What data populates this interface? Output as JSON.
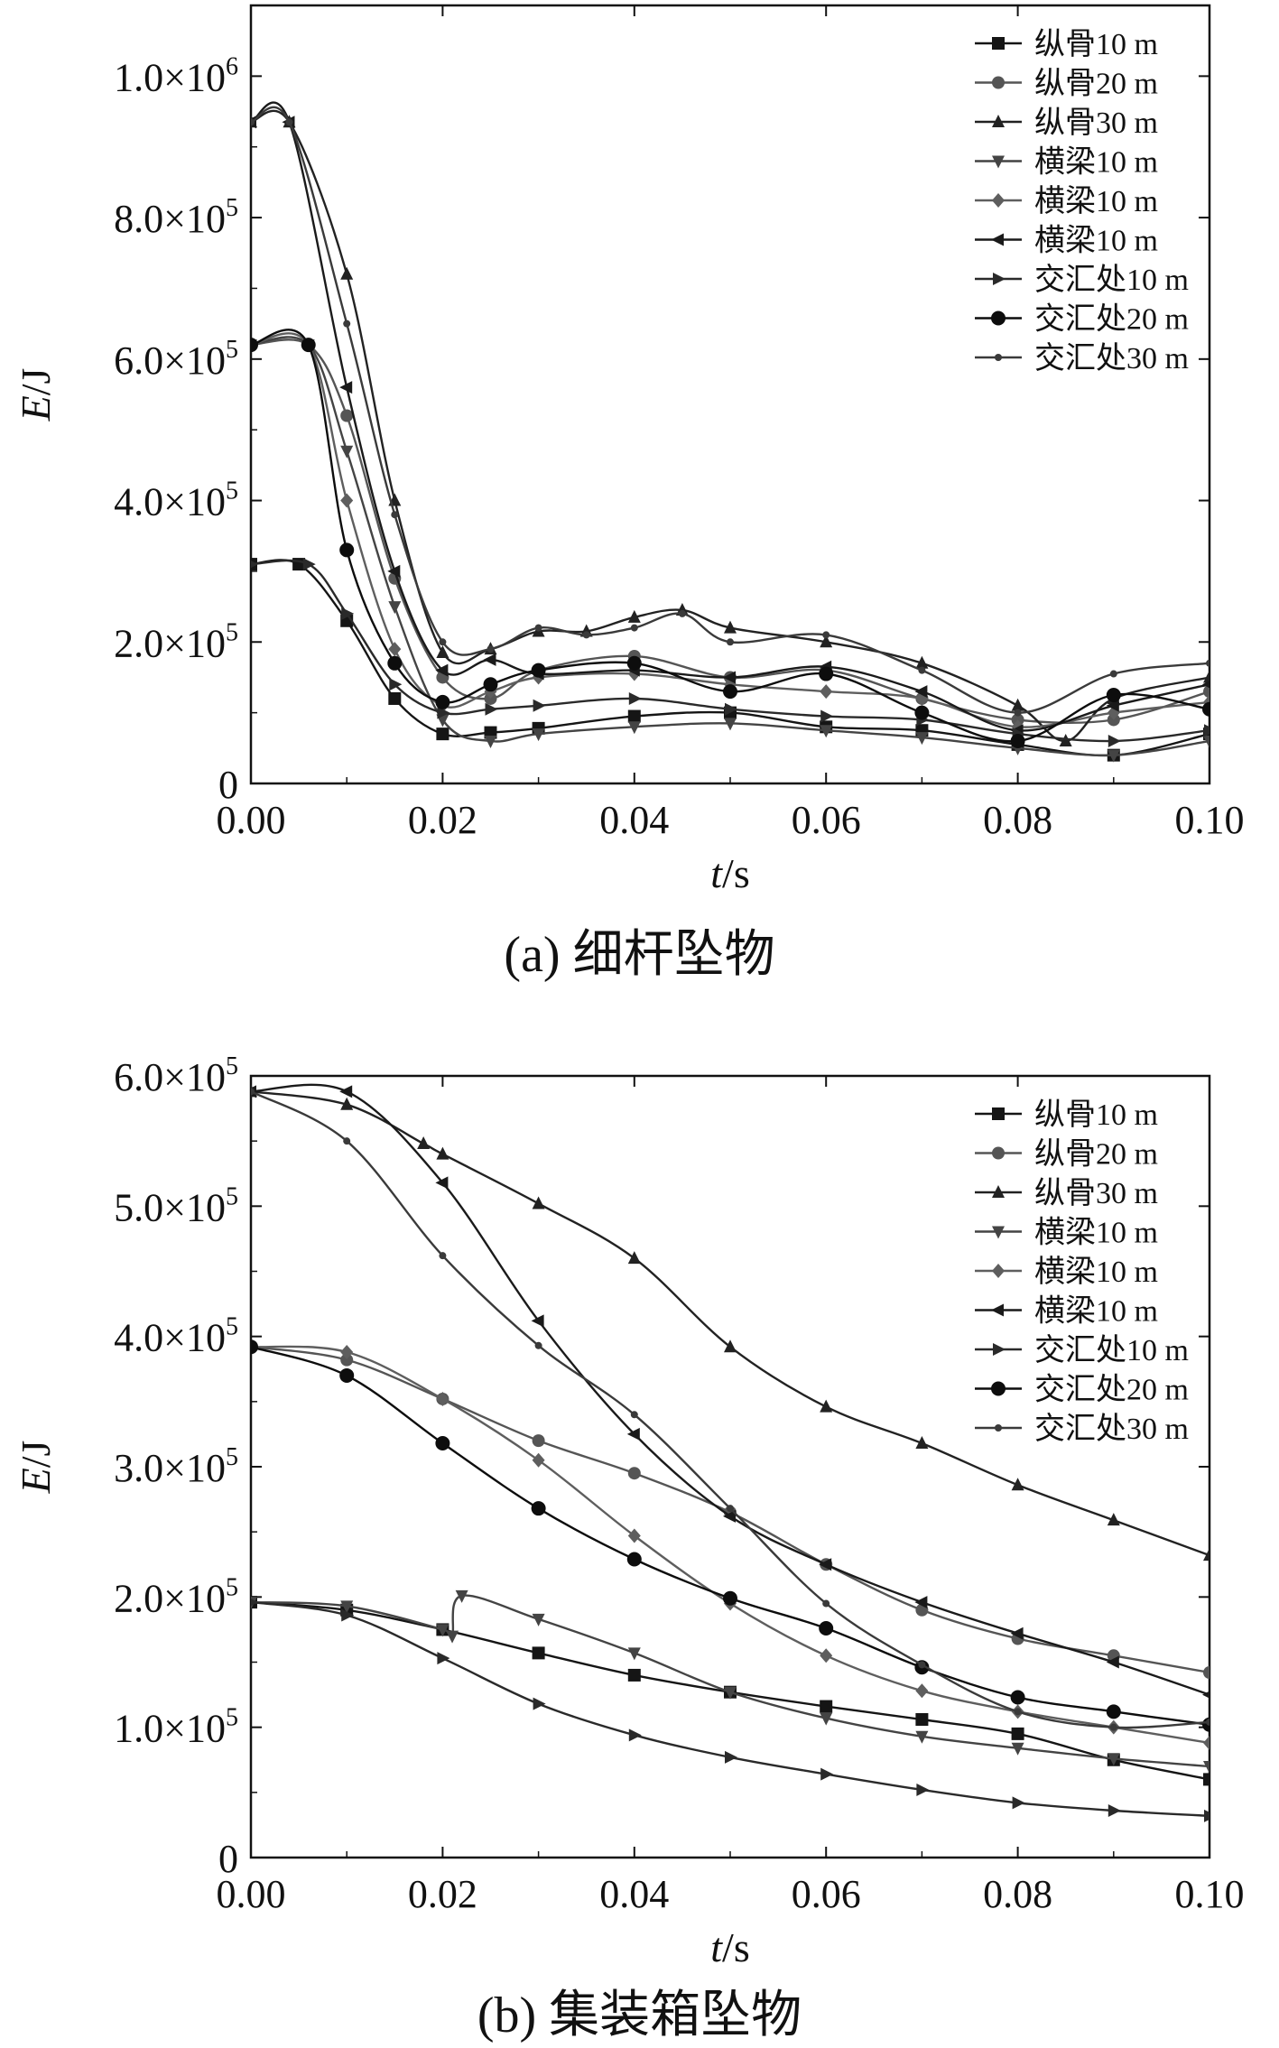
{
  "chart_data": [
    {
      "type": "line",
      "caption": "(a) 细杆坠物",
      "xlabel_italic": "t",
      "xlabel_unit": "/s",
      "ylabel_italic": "E",
      "ylabel_unit": "/J",
      "xlim": [
        0,
        0.1
      ],
      "ylim": [
        0,
        1100000
      ],
      "xticks": [
        0,
        0.02,
        0.04,
        0.06,
        0.08,
        0.1
      ],
      "xtick_labels": [
        "0.00",
        "0.02",
        "0.04",
        "0.06",
        "0.08",
        "0.10"
      ],
      "yticks": [
        0,
        200000,
        400000,
        600000,
        800000,
        1000000
      ],
      "ytick_labels": [
        {
          "base": "0",
          "exp": ""
        },
        {
          "base": "2.0×10",
          "exp": "5"
        },
        {
          "base": "4.0×10",
          "exp": "5"
        },
        {
          "base": "6.0×10",
          "exp": "5"
        },
        {
          "base": "8.0×10",
          "exp": "5"
        },
        {
          "base": "1.0×10",
          "exp": "6"
        }
      ],
      "legend_position": "top-right",
      "grid": false,
      "series": [
        {
          "name": "纵骨10 m",
          "marker": "square",
          "color": "#151515",
          "x": [
            0,
            0.005,
            0.01,
            0.015,
            0.02,
            0.025,
            0.03,
            0.04,
            0.05,
            0.06,
            0.07,
            0.08,
            0.09,
            0.1
          ],
          "y": [
            310000,
            310000,
            230000,
            120000,
            70000,
            72000,
            78000,
            95000,
            100000,
            80000,
            75000,
            55000,
            40000,
            70000
          ]
        },
        {
          "name": "纵骨20 m",
          "marker": "circle",
          "color": "#555555",
          "x": [
            0,
            0.006,
            0.01,
            0.015,
            0.02,
            0.025,
            0.03,
            0.04,
            0.05,
            0.06,
            0.07,
            0.08,
            0.09,
            0.1
          ],
          "y": [
            620000,
            620000,
            520000,
            290000,
            150000,
            120000,
            160000,
            180000,
            150000,
            160000,
            120000,
            90000,
            90000,
            130000
          ]
        },
        {
          "name": "纵骨30 m",
          "marker": "triangle-up",
          "color": "#222222",
          "x": [
            0,
            0.004,
            0.01,
            0.015,
            0.02,
            0.025,
            0.03,
            0.035,
            0.04,
            0.045,
            0.05,
            0.06,
            0.07,
            0.08,
            0.085,
            0.09,
            0.1
          ],
          "y": [
            935000,
            935000,
            720000,
            400000,
            185000,
            190000,
            215000,
            215000,
            235000,
            245000,
            220000,
            200000,
            170000,
            110000,
            60000,
            120000,
            150000
          ]
        },
        {
          "name": "横梁10 m",
          "marker": "triangle-down",
          "color": "#444444",
          "x": [
            0,
            0.006,
            0.01,
            0.015,
            0.02,
            0.025,
            0.03,
            0.04,
            0.05,
            0.06,
            0.07,
            0.08,
            0.09,
            0.1
          ],
          "y": [
            620000,
            620000,
            470000,
            250000,
            90000,
            60000,
            70000,
            80000,
            85000,
            75000,
            65000,
            50000,
            40000,
            60000
          ]
        },
        {
          "name": "横梁10 m",
          "marker": "diamond",
          "color": "#5e5e5e",
          "x": [
            0,
            0.006,
            0.01,
            0.015,
            0.02,
            0.025,
            0.03,
            0.04,
            0.05,
            0.06,
            0.07,
            0.08,
            0.09,
            0.1
          ],
          "y": [
            620000,
            620000,
            400000,
            190000,
            110000,
            130000,
            150000,
            155000,
            140000,
            130000,
            120000,
            80000,
            100000,
            115000
          ]
        },
        {
          "name": "横梁10 m",
          "marker": "triangle-left",
          "color": "#1a1a1a",
          "x": [
            0,
            0.004,
            0.01,
            0.015,
            0.02,
            0.025,
            0.03,
            0.04,
            0.05,
            0.06,
            0.07,
            0.08,
            0.09,
            0.1
          ],
          "y": [
            935000,
            935000,
            560000,
            300000,
            160000,
            175000,
            155000,
            160000,
            150000,
            165000,
            130000,
            75000,
            110000,
            140000
          ]
        },
        {
          "name": "交汇处10 m",
          "marker": "triangle-right",
          "color": "#2a2a2a",
          "x": [
            0,
            0.006,
            0.01,
            0.015,
            0.02,
            0.025,
            0.03,
            0.04,
            0.05,
            0.06,
            0.07,
            0.08,
            0.09,
            0.1
          ],
          "y": [
            310000,
            310000,
            240000,
            140000,
            100000,
            105000,
            110000,
            120000,
            105000,
            95000,
            90000,
            70000,
            60000,
            75000
          ]
        },
        {
          "name": "交汇处20 m",
          "marker": "filled-circle",
          "color": "#0d0d0d",
          "x": [
            0,
            0.006,
            0.01,
            0.015,
            0.02,
            0.025,
            0.03,
            0.04,
            0.05,
            0.06,
            0.07,
            0.08,
            0.09,
            0.1
          ],
          "y": [
            620000,
            620000,
            330000,
            170000,
            115000,
            140000,
            160000,
            170000,
            130000,
            155000,
            100000,
            60000,
            125000,
            105000
          ]
        },
        {
          "name": "交汇处30 m",
          "marker": "small-dot",
          "color": "#3a3a3a",
          "x": [
            0,
            0.004,
            0.01,
            0.015,
            0.02,
            0.025,
            0.03,
            0.035,
            0.04,
            0.045,
            0.05,
            0.06,
            0.07,
            0.08,
            0.09,
            0.1
          ],
          "y": [
            935000,
            935000,
            650000,
            380000,
            200000,
            190000,
            220000,
            210000,
            220000,
            240000,
            200000,
            210000,
            160000,
            100000,
            155000,
            170000
          ]
        }
      ]
    },
    {
      "type": "line",
      "caption": "(b) 集装箱坠物",
      "xlabel_italic": "t",
      "xlabel_unit": "/s",
      "ylabel_italic": "E",
      "ylabel_unit": "/J",
      "xlim": [
        0,
        0.1
      ],
      "ylim": [
        0,
        600000
      ],
      "xticks": [
        0,
        0.02,
        0.04,
        0.06,
        0.08,
        0.1
      ],
      "xtick_labels": [
        "0.00",
        "0.02",
        "0.04",
        "0.06",
        "0.08",
        "0.10"
      ],
      "yticks": [
        0,
        100000,
        200000,
        300000,
        400000,
        500000,
        600000
      ],
      "ytick_labels": [
        {
          "base": "0",
          "exp": ""
        },
        {
          "base": "1.0×10",
          "exp": "5"
        },
        {
          "base": "2.0×10",
          "exp": "5"
        },
        {
          "base": "3.0×10",
          "exp": "5"
        },
        {
          "base": "4.0×10",
          "exp": "5"
        },
        {
          "base": "5.0×10",
          "exp": "5"
        },
        {
          "base": "6.0×10",
          "exp": "5"
        }
      ],
      "legend_position": "top-right",
      "grid": false,
      "series": [
        {
          "name": "纵骨10 m",
          "marker": "square",
          "color": "#151515",
          "x": [
            0,
            0.01,
            0.02,
            0.03,
            0.04,
            0.05,
            0.06,
            0.07,
            0.08,
            0.09,
            0.1
          ],
          "y": [
            196000,
            190000,
            175000,
            157000,
            140000,
            127000,
            116000,
            106000,
            95000,
            75000,
            60000
          ]
        },
        {
          "name": "纵骨20 m",
          "marker": "circle",
          "color": "#555555",
          "x": [
            0,
            0.01,
            0.02,
            0.03,
            0.04,
            0.05,
            0.06,
            0.07,
            0.08,
            0.09,
            0.1
          ],
          "y": [
            392000,
            382000,
            352000,
            320000,
            295000,
            265000,
            225000,
            190000,
            168000,
            155000,
            142000
          ]
        },
        {
          "name": "纵骨30 m",
          "marker": "triangle-up",
          "color": "#222222",
          "x": [
            0,
            0.01,
            0.018,
            0.02,
            0.03,
            0.04,
            0.05,
            0.06,
            0.07,
            0.08,
            0.09,
            0.1
          ],
          "y": [
            588000,
            578000,
            548000,
            540000,
            502000,
            460000,
            392000,
            346000,
            318000,
            286000,
            259000,
            232000
          ]
        },
        {
          "name": "横梁10 m",
          "marker": "triangle-down",
          "color": "#444444",
          "x": [
            0,
            0.01,
            0.02,
            0.021,
            0.022,
            0.03,
            0.04,
            0.05,
            0.06,
            0.07,
            0.08,
            0.09,
            0.1
          ],
          "y": [
            196000,
            193000,
            175000,
            170000,
            201000,
            183000,
            157000,
            127000,
            107000,
            93000,
            84000,
            76000,
            70000
          ]
        },
        {
          "name": "横梁10 m",
          "marker": "diamond",
          "color": "#5e5e5e",
          "x": [
            0,
            0.01,
            0.02,
            0.03,
            0.04,
            0.05,
            0.06,
            0.07,
            0.08,
            0.09,
            0.1
          ],
          "y": [
            392000,
            388000,
            352000,
            305000,
            247000,
            195000,
            155000,
            128000,
            112000,
            100000,
            88000
          ]
        },
        {
          "name": "横梁10 m",
          "marker": "triangle-left",
          "color": "#1a1a1a",
          "x": [
            0,
            0.01,
            0.02,
            0.03,
            0.04,
            0.05,
            0.06,
            0.07,
            0.08,
            0.09,
            0.1
          ],
          "y": [
            588000,
            588000,
            518000,
            412000,
            325000,
            262000,
            225000,
            196000,
            172000,
            150000,
            125000
          ]
        },
        {
          "name": "交汇处10 m",
          "marker": "triangle-right",
          "color": "#2a2a2a",
          "x": [
            0,
            0.01,
            0.02,
            0.03,
            0.04,
            0.05,
            0.06,
            0.07,
            0.08,
            0.09,
            0.1
          ],
          "y": [
            196000,
            186000,
            153000,
            118000,
            94000,
            77000,
            64000,
            52000,
            42000,
            36000,
            32000
          ]
        },
        {
          "name": "交汇处20 m",
          "marker": "filled-circle",
          "color": "#0d0d0d",
          "x": [
            0,
            0.01,
            0.02,
            0.03,
            0.04,
            0.05,
            0.06,
            0.07,
            0.08,
            0.09,
            0.1
          ],
          "y": [
            392000,
            370000,
            318000,
            268000,
            229000,
            199000,
            176000,
            146000,
            123000,
            112000,
            102000
          ]
        },
        {
          "name": "交汇处30 m",
          "marker": "small-dot",
          "color": "#3a3a3a",
          "x": [
            0,
            0.01,
            0.02,
            0.03,
            0.04,
            0.05,
            0.06,
            0.07,
            0.08,
            0.09,
            0.1
          ],
          "y": [
            588000,
            550000,
            462000,
            393000,
            340000,
            268000,
            195000,
            148000,
            112000,
            100000,
            104000
          ]
        }
      ]
    }
  ]
}
